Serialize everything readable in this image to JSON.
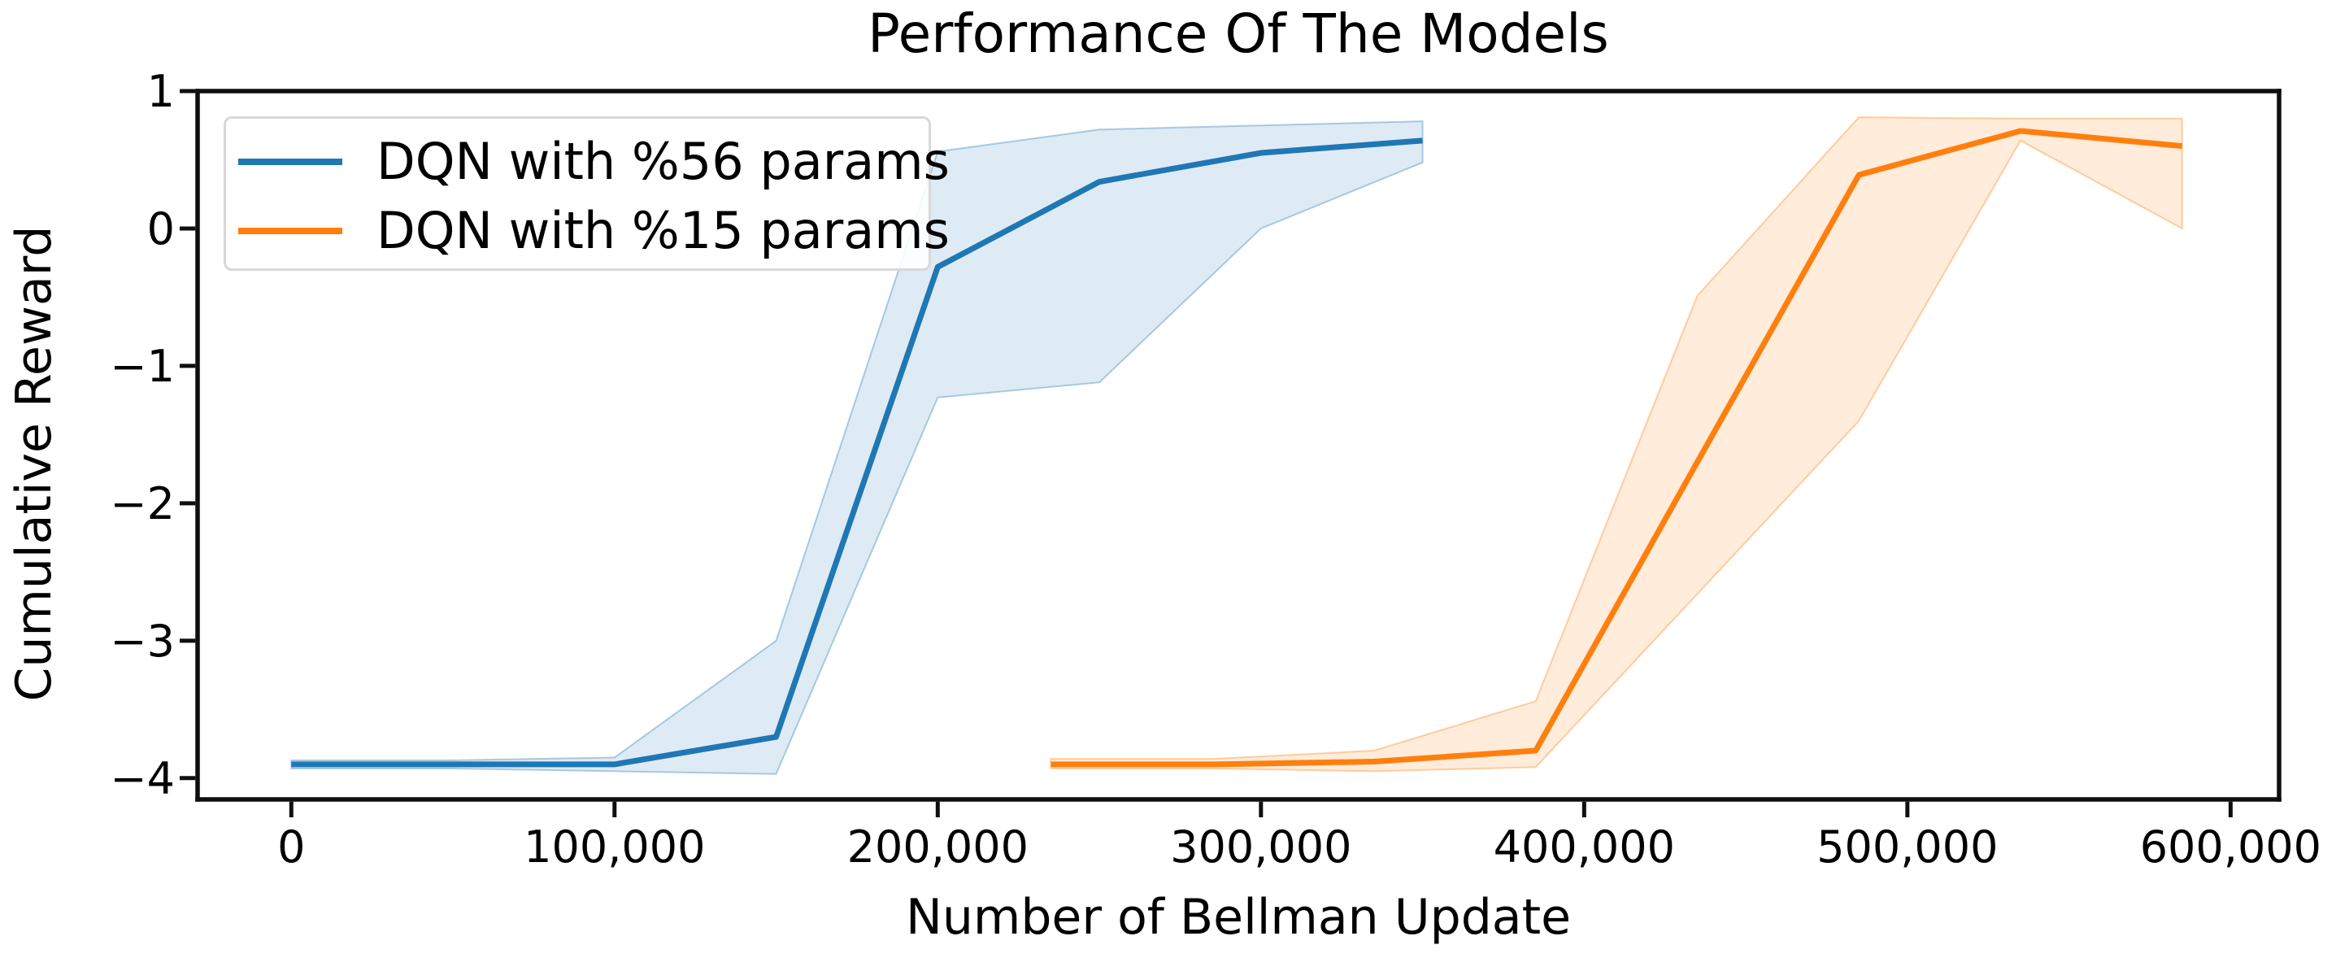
{
  "chart_data": {
    "type": "line",
    "title": "Performance Of The Models",
    "xlabel": "Number of Bellman Update",
    "ylabel": "Cumulative Reward",
    "xlim": [
      -29000,
      615000
    ],
    "ylim": [
      -4.155,
      1.0
    ],
    "grid": false,
    "legend_position": "upper left",
    "x_ticks": [
      0,
      100000,
      200000,
      300000,
      400000,
      500000,
      600000
    ],
    "x_tick_labels": [
      "0",
      "100,000",
      "200,000",
      "300,000",
      "400,000",
      "500,000",
      "600,000"
    ],
    "y_ticks": [
      1,
      0,
      -1,
      -2,
      -3,
      -4
    ],
    "y_tick_labels": [
      "1",
      "0",
      "−1",
      "−2",
      "−3",
      "−4"
    ],
    "series": [
      {
        "name": "DQN with %56 params",
        "color": "#1f77b4",
        "band_color": "#1f77b4",
        "x": [
          0,
          50000,
          100000,
          150000,
          200000,
          250000,
          300000,
          350000
        ],
        "y": [
          -3.9,
          -3.9,
          -3.9,
          -3.7,
          -0.28,
          0.34,
          0.55,
          0.64
        ],
        "band_lower": [
          -3.93,
          -3.93,
          -3.95,
          -3.97,
          -1.23,
          -1.12,
          0.0,
          0.48
        ],
        "band_upper": [
          -3.87,
          -3.87,
          -3.85,
          -3.0,
          0.56,
          0.72,
          0.75,
          0.78
        ]
      },
      {
        "name": "DQN with %15 params",
        "color": "#ff7f0e",
        "band_color": "#ff7f0e",
        "x": [
          235000,
          285000,
          335000,
          385000,
          435000,
          485000,
          535000,
          585000
        ],
        "y": [
          -3.9,
          -3.9,
          -3.88,
          -3.8,
          -1.7,
          0.39,
          0.71,
          0.6
        ],
        "band_lower": [
          -3.93,
          -3.93,
          -3.95,
          -3.92,
          -2.66,
          -1.4,
          0.64,
          0.0
        ],
        "band_upper": [
          -3.86,
          -3.86,
          -3.8,
          -3.44,
          -0.49,
          0.81,
          0.8,
          0.8
        ]
      }
    ]
  }
}
